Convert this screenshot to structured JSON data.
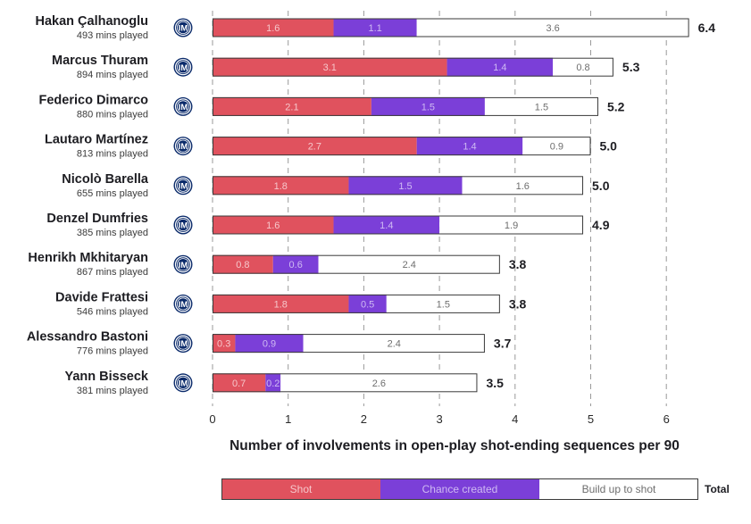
{
  "chart_data": {
    "type": "bar",
    "orientation": "horizontal",
    "stacked": true,
    "xlabel": "Number of involvements in open-play shot-ending sequences per 90",
    "xlim": [
      0,
      6.5
    ],
    "xticks": [
      "0",
      "1",
      "2",
      "3",
      "4",
      "5",
      "6"
    ],
    "grid": "vertical dashed",
    "legend_position": "bottom",
    "legend_total_label": "Total",
    "series": [
      {
        "name": "Shot",
        "color": "#e0525e",
        "label_color": "#f6c7cb",
        "values": [
          1.6,
          3.1,
          2.1,
          2.7,
          1.8,
          1.6,
          0.8,
          1.8,
          0.3,
          0.7
        ]
      },
      {
        "name": "Chance created",
        "color": "#7b3fd8",
        "label_color": "#cfbaf3",
        "values": [
          1.1,
          1.4,
          1.5,
          1.4,
          1.5,
          1.4,
          0.6,
          0.5,
          0.9,
          0.2
        ]
      },
      {
        "name": "Build up to shot",
        "color": "#ffffff",
        "label_color": "#6e6e6e",
        "values": [
          3.6,
          0.8,
          1.5,
          0.9,
          1.6,
          1.9,
          2.4,
          1.5,
          2.4,
          2.6
        ]
      }
    ],
    "totals": [
      "6.4",
      "5.3",
      "5.2",
      "5.0",
      "5.0",
      "4.9",
      "3.8",
      "3.8",
      "3.7",
      "3.5"
    ],
    "players": [
      {
        "name": "Hakan Çalhanoglu",
        "minutes": "493 mins played",
        "icon": "inter-crest-icon"
      },
      {
        "name": "Marcus Thuram",
        "minutes": "894 mins played",
        "icon": "inter-crest-icon"
      },
      {
        "name": "Federico Dimarco",
        "minutes": "880 mins played",
        "icon": "inter-crest-icon"
      },
      {
        "name": "Lautaro Martínez",
        "minutes": "813 mins played",
        "icon": "inter-crest-icon"
      },
      {
        "name": "Nicolò Barella",
        "minutes": "655 mins played",
        "icon": "inter-crest-icon"
      },
      {
        "name": "Denzel Dumfries",
        "minutes": "385 mins played",
        "icon": "inter-crest-icon"
      },
      {
        "name": "Henrikh Mkhitaryan",
        "minutes": "867 mins played",
        "icon": "inter-crest-icon"
      },
      {
        "name": "Davide Frattesi",
        "minutes": "546 mins played",
        "icon": "inter-crest-icon"
      },
      {
        "name": "Alessandro Bastoni",
        "minutes": "776 mins played",
        "icon": "inter-crest-icon"
      },
      {
        "name": "Yann Bisseck",
        "minutes": "381 mins played",
        "icon": "inter-crest-icon"
      }
    ]
  }
}
